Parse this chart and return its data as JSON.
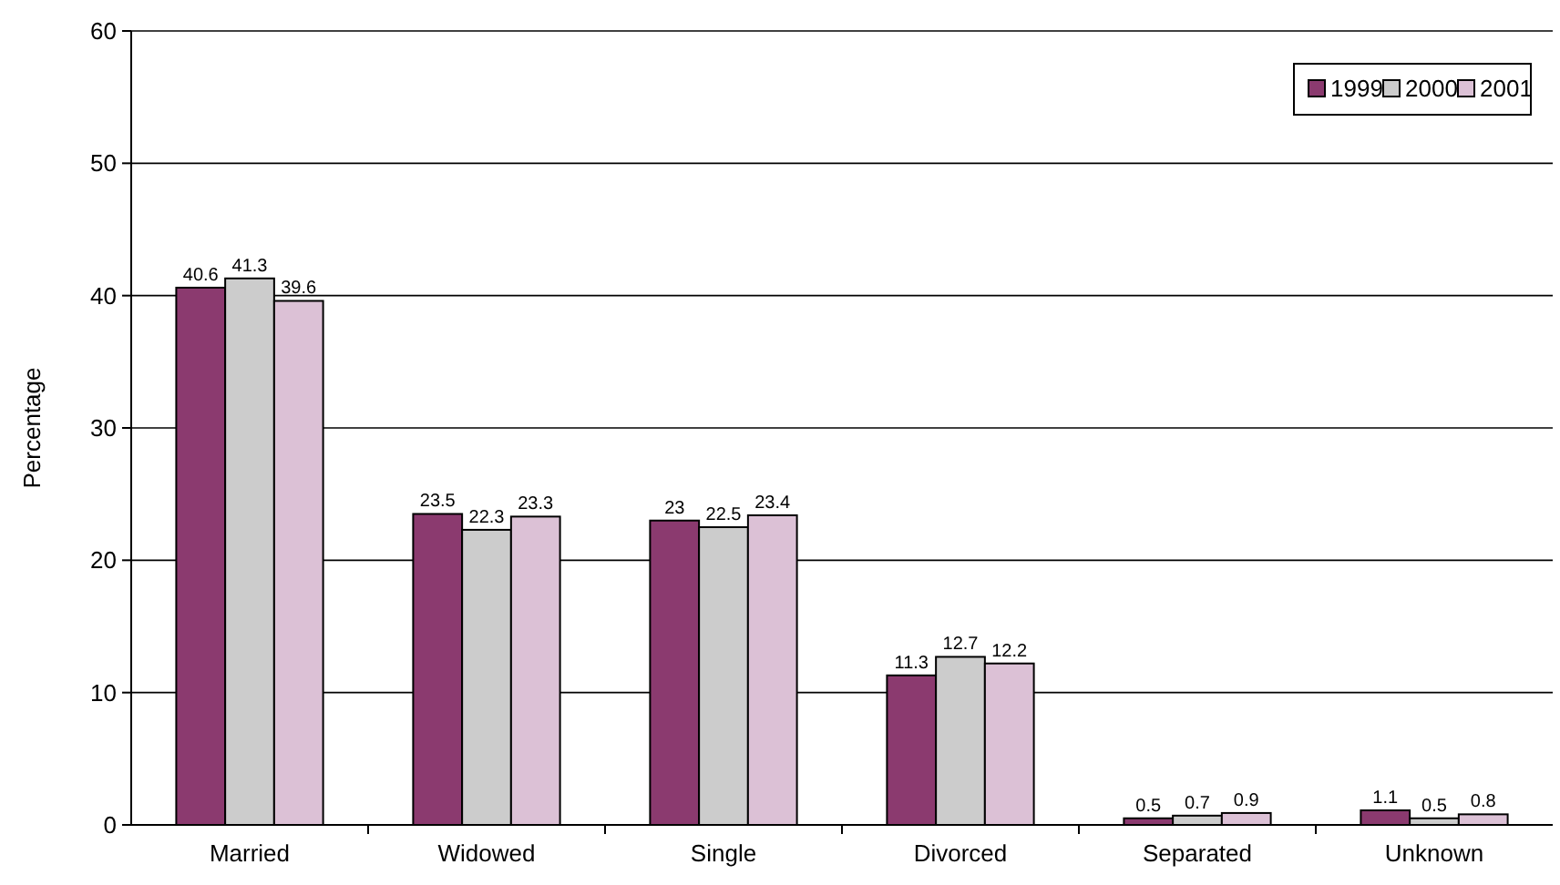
{
  "chart_data": {
    "type": "bar",
    "ylabel": "Percentage",
    "categories": [
      "Married",
      "Widowed",
      "Single",
      "Divorced",
      "Separated",
      "Unknown"
    ],
    "series": [
      {
        "name": "1999",
        "color": "#8b3a6f",
        "values": [
          40.6,
          23.5,
          23,
          11.3,
          0.5,
          1.1
        ]
      },
      {
        "name": "2000",
        "color": "#cccccc",
        "values": [
          41.3,
          22.3,
          22.5,
          12.7,
          0.7,
          0.5
        ]
      },
      {
        "name": "2001",
        "color": "#dcc1d6",
        "values": [
          39.6,
          23.3,
          23.4,
          12.2,
          0.9,
          0.8
        ]
      }
    ],
    "ylim": [
      0,
      60
    ],
    "yticks": [
      0,
      10,
      20,
      30,
      40,
      50,
      60
    ],
    "grid": "y",
    "legend": "top right",
    "data_labels": true
  }
}
